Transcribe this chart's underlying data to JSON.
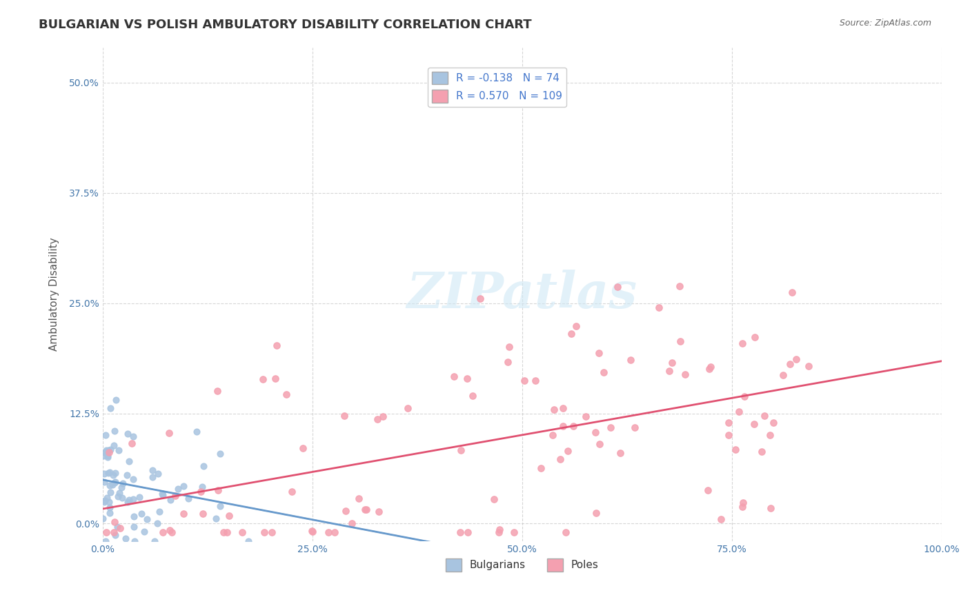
{
  "title": "BULGARIAN VS POLISH AMBULATORY DISABILITY CORRELATION CHART",
  "source": "Source: ZipAtlas.com",
  "xlabel": "",
  "ylabel": "Ambulatory Disability",
  "xlim": [
    0.0,
    1.0
  ],
  "ylim": [
    -0.02,
    0.54
  ],
  "xticks": [
    0.0,
    0.25,
    0.5,
    0.75,
    1.0
  ],
  "xtick_labels": [
    "0.0%",
    "25.0%",
    "50.0%",
    "75.0%",
    "100.0%"
  ],
  "yticks": [
    0.0,
    0.125,
    0.25,
    0.375,
    0.5
  ],
  "ytick_labels": [
    "0.0%",
    "12.5%",
    "25.0%",
    "37.5%",
    "50.0%"
  ],
  "bulgarian_color": "#a8c4e0",
  "polish_color": "#f4a0b0",
  "bulgarian_R": -0.138,
  "bulgarian_N": 74,
  "polish_R": 0.57,
  "polish_N": 109,
  "legend_bulgarian_label": "Bulgarians",
  "legend_polish_label": "Poles",
  "background_color": "#ffffff",
  "grid_color": "#cccccc",
  "watermark": "ZIPatlas",
  "title_fontsize": 13,
  "axis_label_fontsize": 11,
  "tick_fontsize": 10,
  "legend_fontsize": 11
}
